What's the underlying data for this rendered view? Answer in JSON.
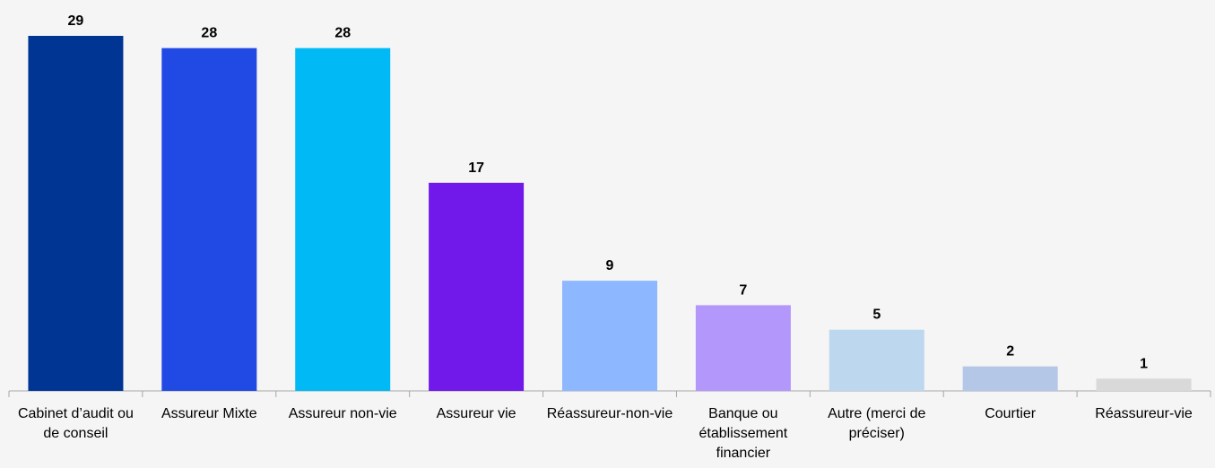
{
  "chart_data": {
    "type": "bar",
    "categories": [
      "Cabinet d’audit ou de conseil",
      "Assureur Mixte",
      "Assureur non-vie",
      "Assureur vie",
      "Réassureur-non-vie",
      "Banque ou établissement financier",
      "Autre (merci de préciser)",
      "Courtier",
      "Réassureur-vie"
    ],
    "values": [
      29,
      28,
      28,
      17,
      9,
      7,
      5,
      2,
      1
    ],
    "colors": [
      "#003594",
      "#2149e4",
      "#00b9f5",
      "#7118ea",
      "#8db8ff",
      "#b497fb",
      "#bdd7ee",
      "#b4c7e7",
      "#d9d9d9"
    ]
  }
}
